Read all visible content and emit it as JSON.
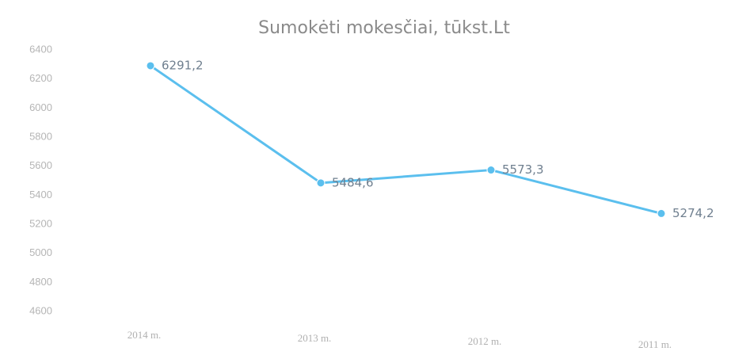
{
  "chart_data": {
    "type": "line",
    "title": "Sumokėti mokesčiai, tūkst.Lt",
    "categories": [
      "2014 m.",
      "2013 m.",
      "2012 m.",
      "2011 m."
    ],
    "series": [
      {
        "name": "Sumokėti mokesčiai",
        "color": "#5bbfee",
        "values": [
          6291.2,
          5484.6,
          5573.3,
          5274.2
        ],
        "value_labels": [
          "6291,2",
          "5484,6",
          "5573,3",
          "5274,2"
        ]
      }
    ],
    "ylim": [
      4600,
      6400
    ],
    "yticks": [
      4600,
      4800,
      5000,
      5200,
      5400,
      5600,
      5800,
      6000,
      6200,
      6400
    ],
    "grid": false
  }
}
